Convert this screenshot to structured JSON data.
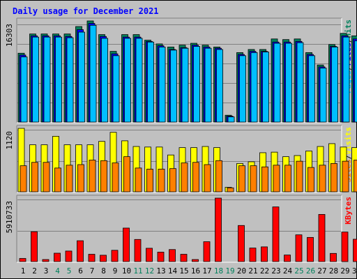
{
  "chart_data": [
    {
      "type": "bar",
      "title": "Daily usage for December 2021",
      "categories": [
        "1",
        "2",
        "3",
        "4",
        "5",
        "6",
        "7",
        "8",
        "9",
        "10",
        "11",
        "12",
        "13",
        "14",
        "15",
        "16",
        "17",
        "18",
        "19",
        "20",
        "21",
        "22",
        "23",
        "24",
        "25",
        "26",
        "27",
        "28",
        "29",
        "30",
        "31"
      ],
      "weekend_days": [
        "4",
        "5",
        "11",
        "12",
        "18",
        "19",
        "25",
        "26"
      ],
      "ymax_label": "16303",
      "ylim": [
        0,
        16303
      ],
      "legend": [
        "Pages",
        "Files",
        "Hits"
      ],
      "series": [
        {
          "name": "Hits",
          "color": "#00805c",
          "values": [
            11100,
            14200,
            14200,
            14200,
            14200,
            15400,
            16303,
            14100,
            11400,
            14100,
            14100,
            13200,
            12600,
            12100,
            12400,
            12700,
            12400,
            12100,
            1100,
            11200,
            11700,
            11700,
            13400,
            13300,
            13400,
            11200,
            9200,
            12500,
            14300,
            13900,
            12500
          ]
        },
        {
          "name": "Files",
          "color": "#0000ff",
          "values": [
            10800,
            13900,
            13900,
            13900,
            13800,
            14900,
            15900,
            13800,
            11000,
            13700,
            13700,
            13000,
            12300,
            11700,
            12000,
            12400,
            12100,
            11900,
            950,
            10900,
            11400,
            11400,
            12900,
            12900,
            13000,
            10900,
            8900,
            12200,
            13900,
            13400,
            12300
          ]
        },
        {
          "name": "Pages",
          "color": "#00bfff",
          "values": [
            10500,
            13700,
            13700,
            13700,
            13600,
            14500,
            15600,
            13500,
            10700,
            13500,
            13500,
            12900,
            12100,
            11600,
            11900,
            12200,
            11900,
            11700,
            830,
            10700,
            11200,
            11300,
            12700,
            12700,
            12800,
            10700,
            8700,
            12100,
            13700,
            13100,
            12100
          ]
        }
      ]
    },
    {
      "type": "bar",
      "ymax_label": "1120",
      "ylim": [
        0,
        1120
      ],
      "legend": [
        "Sites",
        "Visits"
      ],
      "series": [
        {
          "name": "Visits",
          "color": "#ffff00",
          "values": [
            1120,
            830,
            830,
            980,
            830,
            830,
            830,
            890,
            1050,
            900,
            800,
            790,
            790,
            650,
            780,
            780,
            800,
            780,
            80,
            500,
            530,
            690,
            700,
            620,
            640,
            720,
            800,
            850,
            790,
            780,
            630
          ]
        },
        {
          "name": "Sites",
          "color": "#ff8000",
          "values": [
            460,
            520,
            520,
            420,
            470,
            480,
            560,
            550,
            510,
            620,
            420,
            400,
            400,
            410,
            510,
            520,
            480,
            550,
            70,
            460,
            460,
            440,
            470,
            470,
            540,
            430,
            470,
            500,
            540,
            560,
            450
          ]
        }
      ]
    },
    {
      "type": "bar",
      "ymax_label": "5910733",
      "ylim": [
        0,
        5910733
      ],
      "legend": [
        "KBytes"
      ],
      "series": [
        {
          "name": "KBytes",
          "color": "#ff0000",
          "values": [
            290000,
            2780000,
            190000,
            780000,
            980000,
            1940000,
            680000,
            590000,
            1050000,
            3120000,
            2060000,
            1240000,
            880000,
            1120000,
            680000,
            190000,
            1850000,
            5910733,
            0,
            3360000,
            1260000,
            1370000,
            5090000,
            610000,
            2490000,
            2250000,
            4390000,
            760000,
            2750000,
            2080000,
            930000
          ]
        }
      ]
    }
  ]
}
